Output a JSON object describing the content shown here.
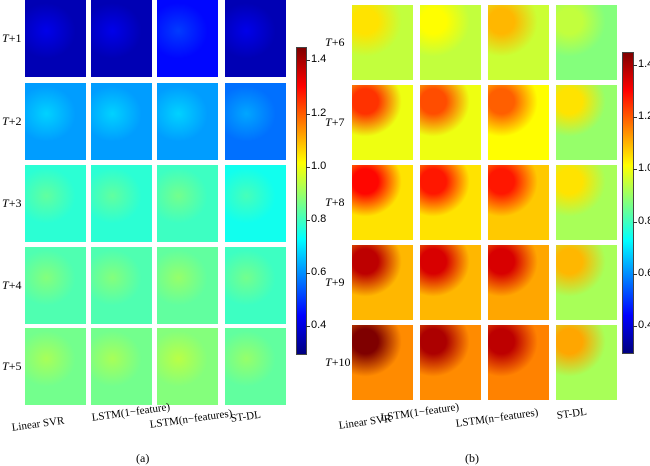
{
  "chart_data": [
    {
      "type": "heatmap",
      "panel_label": "(a)",
      "row_labels": [
        "T+1",
        "T+2",
        "T+3",
        "T+4",
        "T+5"
      ],
      "column_labels": [
        "Linear SVR",
        "LSTM(1−feature)",
        "LSTM(n−features)",
        "ST-DL"
      ],
      "colorbar": {
        "min": 0.3,
        "max": 1.45,
        "ticks": [
          0.4,
          0.6,
          0.8,
          1.0,
          1.2,
          1.4
        ],
        "tick_labels": [
          "0.4",
          "0.6",
          "0.8",
          "1.0",
          "1.2",
          "1.4"
        ]
      },
      "approx_mean_values": [
        [
          0.36,
          0.36,
          0.45,
          0.36
        ],
        [
          0.62,
          0.62,
          0.62,
          0.57
        ],
        [
          0.78,
          0.78,
          0.8,
          0.75
        ],
        [
          0.82,
          0.82,
          0.84,
          0.8
        ],
        [
          0.86,
          0.86,
          0.88,
          0.84
        ]
      ]
    },
    {
      "type": "heatmap",
      "panel_label": "(b)",
      "row_labels": [
        "T+6",
        "T+7",
        "T+8",
        "T+9",
        "T+10"
      ],
      "column_labels": [
        "Linear SVR",
        "LSTM(1−feature)",
        "LSTM(n−features)",
        "ST-DL"
      ],
      "colorbar": {
        "min": 0.3,
        "max": 1.45,
        "ticks": [
          0.4,
          0.6,
          0.8,
          1.0,
          1.2,
          1.4
        ],
        "tick_labels": [
          "0.4",
          "0.6",
          "0.8",
          "1.0",
          "1.2",
          "1.4"
        ]
      },
      "approx_mean_values": [
        [
          0.95,
          0.95,
          0.96,
          0.88
        ],
        [
          1.0,
          1.0,
          1.02,
          0.9
        ],
        [
          1.05,
          1.05,
          1.08,
          0.92
        ],
        [
          1.1,
          1.1,
          1.12,
          0.92
        ],
        [
          1.15,
          1.15,
          1.16,
          0.92
        ]
      ],
      "approx_peak_values": [
        [
          1.05,
          1.02,
          1.1,
          0.95
        ],
        [
          1.25,
          1.22,
          1.2,
          1.05
        ],
        [
          1.3,
          1.28,
          1.28,
          1.05
        ],
        [
          1.38,
          1.35,
          1.35,
          1.1
        ],
        [
          1.45,
          1.4,
          1.38,
          1.12
        ]
      ]
    }
  ],
  "colors": {
    "colormap": [
      "#00007f",
      "#0000ff",
      "#0080ff",
      "#00ffff",
      "#80ff80",
      "#ffff00",
      "#ff8000",
      "#ff0000",
      "#7f0000"
    ]
  }
}
